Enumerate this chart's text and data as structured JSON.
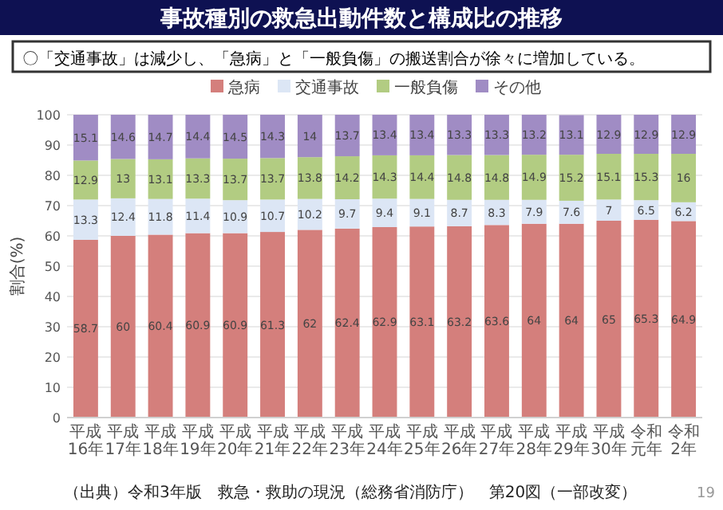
{
  "chart_data": {
    "type": "bar",
    "stacked": true,
    "title": "事故種別の救急出動件数と構成比の推移",
    "subtitle": "〇「交通事故」は減少し、「急病」と「一般負傷」の搬送割合が徐々に増加している。",
    "ylabel": "割合(%)",
    "categories": [
      "平成16年",
      "平成17年",
      "平成18年",
      "平成19年",
      "平成20年",
      "平成21年",
      "平成22年",
      "平成23年",
      "平成24年",
      "平成25年",
      "平成26年",
      "平成27年",
      "平成28年",
      "平成29年",
      "平成30年",
      "令和元年",
      "令和2年"
    ],
    "series": [
      {
        "name": "急病",
        "color": "#d47f7c",
        "values": [
          58.7,
          60,
          60.4,
          60.9,
          60.9,
          61.3,
          62,
          62.4,
          62.9,
          63.1,
          63.2,
          63.6,
          64,
          64,
          65,
          65.3,
          64.9
        ]
      },
      {
        "name": "交通事故",
        "color": "#dce6f5",
        "values": [
          13.3,
          12.4,
          11.8,
          11.4,
          10.9,
          10.7,
          10.2,
          9.7,
          9.4,
          9.1,
          8.7,
          8.3,
          7.9,
          7.6,
          7,
          6.5,
          6.2
        ]
      },
      {
        "name": "一般負傷",
        "color": "#b2cc82",
        "values": [
          12.9,
          13,
          13.1,
          13.3,
          13.7,
          13.7,
          13.8,
          14.2,
          14.3,
          14.4,
          14.8,
          14.8,
          14.9,
          15.2,
          15.1,
          15.3,
          16
        ]
      },
      {
        "name": "その他",
        "color": "#a08cc4",
        "values": [
          15.1,
          14.6,
          14.7,
          14.4,
          14.5,
          14.3,
          14,
          13.7,
          13.4,
          13.4,
          13.3,
          13.3,
          13.2,
          13.1,
          12.9,
          12.9,
          12.9
        ]
      }
    ],
    "ylim": [
      0,
      100
    ],
    "yticks": [
      0,
      10,
      20,
      30,
      40,
      50,
      60,
      70,
      80,
      90,
      100
    ],
    "grid": "y",
    "legend": "top",
    "data_labels": true,
    "annotations": [
      "（出典）令和3年版　救急・救助の現況（総務省消防庁）　第20図（一部改変）",
      "19"
    ]
  }
}
